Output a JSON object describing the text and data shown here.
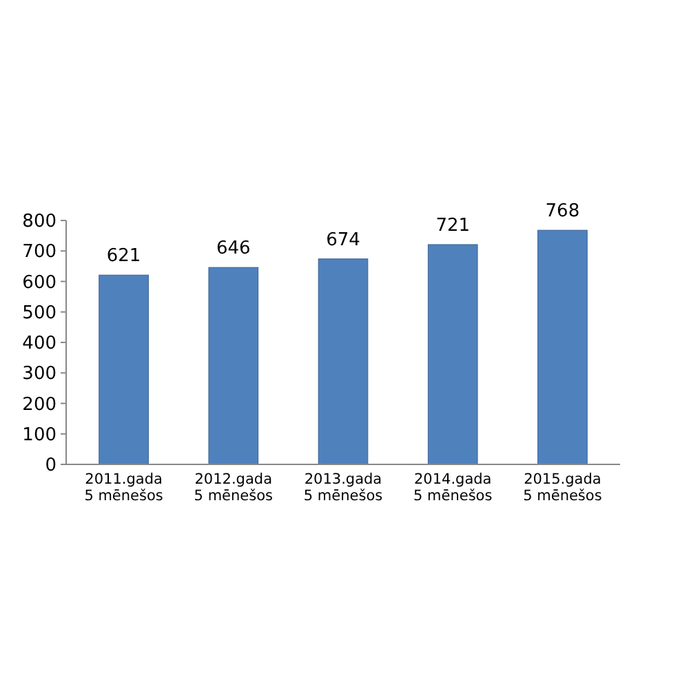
{
  "chart_data": {
    "type": "bar",
    "categories": [
      "2011.gada\n5 mēnešos",
      "2012.gada\n5 mēnešos",
      "2013.gada\n5 mēnešos",
      "2014.gada\n5 mēnešos",
      "2015.gada\n5 mēnešos"
    ],
    "values": [
      621,
      646,
      674,
      721,
      768
    ],
    "color": "#4f81bd",
    "ylim": [
      0,
      800
    ],
    "yticks": [
      0,
      100,
      200,
      300,
      400,
      500,
      600,
      700,
      800
    ],
    "data_labels": true
  }
}
